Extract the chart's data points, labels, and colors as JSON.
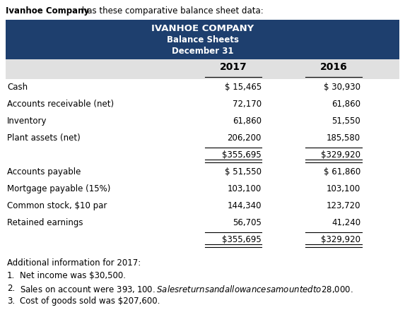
{
  "intro_bold": "Ivanhoe Company",
  "intro_rest": " has these comparative balance sheet data:",
  "header_line1": "IVANHOE COMPANY",
  "header_line2": "Balance Sheets",
  "header_line3": "December 31",
  "header_bg": "#1e3f6e",
  "header_text_color": "#ffffff",
  "col_header_bg": "#e0e0e0",
  "years": [
    "2017",
    "2016"
  ],
  "rows": [
    {
      "label": "Cash",
      "val2017": "$ 15,465",
      "val2016": "$ 30,930",
      "line_before": false,
      "double_after": false,
      "gap_after": false
    },
    {
      "label": "Accounts receivable (net)",
      "val2017": "72,170",
      "val2016": "61,860",
      "line_before": false,
      "double_after": false,
      "gap_after": false
    },
    {
      "label": "Inventory",
      "val2017": "61,860",
      "val2016": "51,550",
      "line_before": false,
      "double_after": false,
      "gap_after": false
    },
    {
      "label": "Plant assets (net)",
      "val2017": "206,200",
      "val2016": "185,580",
      "line_before": false,
      "double_after": false,
      "gap_after": false
    },
    {
      "label": "",
      "val2017": "$355,695",
      "val2016": "$329,920",
      "line_before": true,
      "double_after": true,
      "gap_after": true
    },
    {
      "label": "Accounts payable",
      "val2017": "$ 51,550",
      "val2016": "$ 61,860",
      "line_before": false,
      "double_after": false,
      "gap_after": false
    },
    {
      "label": "Mortgage payable (15%)",
      "val2017": "103,100",
      "val2016": "103,100",
      "line_before": false,
      "double_after": false,
      "gap_after": false
    },
    {
      "label": "Common stock, $10 par",
      "val2017": "144,340",
      "val2016": "123,720",
      "line_before": false,
      "double_after": false,
      "gap_after": false
    },
    {
      "label": "Retained earnings",
      "val2017": "56,705",
      "val2016": "41,240",
      "line_before": false,
      "double_after": false,
      "gap_after": false
    },
    {
      "label": "",
      "val2017": "$355,695",
      "val2016": "$329,920",
      "line_before": true,
      "double_after": true,
      "gap_after": false
    }
  ],
  "additional_title": "Additional information for 2017:",
  "notes": [
    "Net income was $30,500.",
    "Sales on account were $393,100. Sales returns and allowances amounted to $28,000.",
    "Cost of goods sold was $207,600."
  ],
  "background_color": "#ffffff",
  "text_color": "#000000",
  "font_size": 8.5,
  "header_font_size": 9.5
}
